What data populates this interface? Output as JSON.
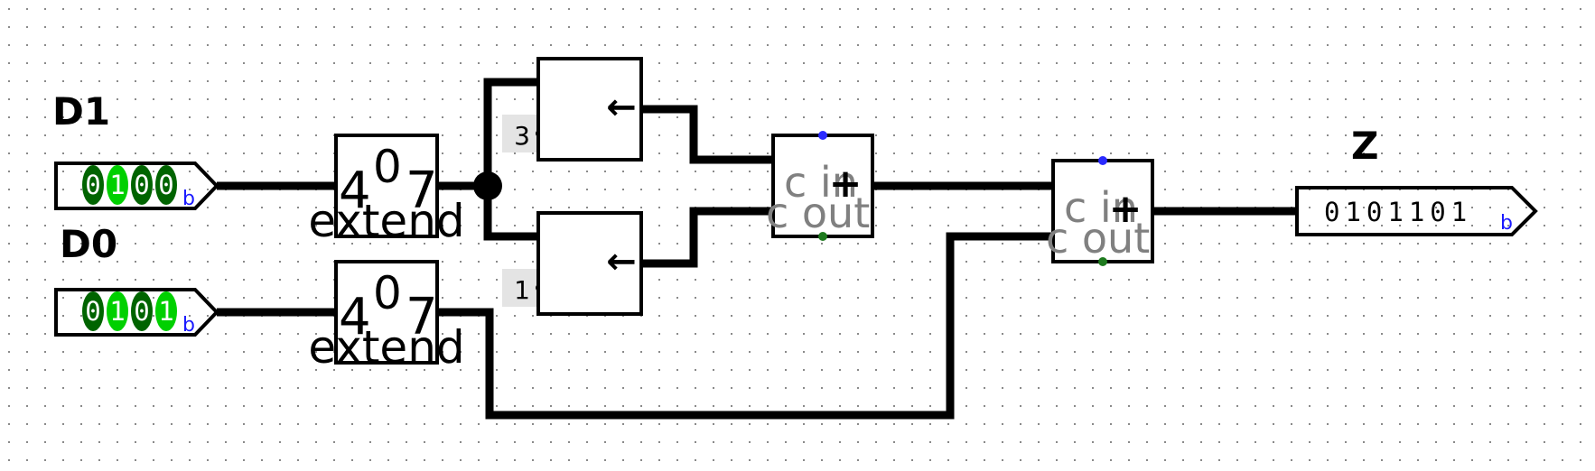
{
  "inputs": [
    {
      "name": "D1",
      "bits": [
        "0",
        "1",
        "0",
        "0"
      ],
      "radix": "b",
      "bit_colors": [
        "#006400",
        "#00d000",
        "#006400",
        "#006400"
      ]
    },
    {
      "name": "D0",
      "bits": [
        "0",
        "1",
        "0",
        "1"
      ],
      "radix": "b",
      "bit_colors": [
        "#006400",
        "#00d000",
        "#006400",
        "#00d000"
      ]
    }
  ],
  "extenders": [
    {
      "in_width": "4",
      "out_width": "7",
      "zero": "0",
      "label": "extend"
    },
    {
      "in_width": "4",
      "out_width": "7",
      "zero": "0",
      "label": "extend"
    }
  ],
  "shifters": [
    {
      "amount": "3",
      "symbol": "←"
    },
    {
      "amount": "1",
      "symbol": "←"
    }
  ],
  "adders": [
    {
      "op": "+",
      "cin_label": "c in",
      "cout_label": "c out"
    },
    {
      "op": "+",
      "cin_label": "c in",
      "cout_label": "c out"
    }
  ],
  "output": {
    "name": "Z",
    "value": "0101101",
    "radix": "b"
  },
  "colors": {
    "wire": "#000000",
    "grid_dot": "#8a8a8a",
    "carry_in_dot": "#2a2aff",
    "carry_out_dot": "#1e7a1e",
    "shift_tag_bg": "#e4e4e4",
    "adder_text": "#808080"
  }
}
